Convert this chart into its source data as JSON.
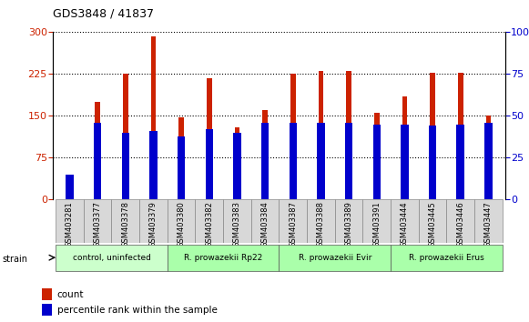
{
  "title": "GDS3848 / 41837",
  "samples": [
    "GSM403281",
    "GSM403377",
    "GSM403378",
    "GSM403379",
    "GSM403380",
    "GSM403382",
    "GSM403383",
    "GSM403384",
    "GSM403387",
    "GSM403388",
    "GSM403389",
    "GSM403391",
    "GSM403444",
    "GSM403445",
    "GSM403446",
    "GSM403447"
  ],
  "count_values": [
    5,
    175,
    225,
    293,
    148,
    218,
    130,
    160,
    225,
    230,
    230,
    155,
    185,
    228,
    228,
    150
  ],
  "percentile_values": [
    15,
    46,
    40,
    41,
    38,
    42,
    40,
    46,
    46,
    46,
    46,
    45,
    45,
    44,
    45,
    46
  ],
  "groups": [
    {
      "label": "control, uninfected",
      "start": 0,
      "end": 4,
      "color": "#ccffcc"
    },
    {
      "label": "R. prowazekii Rp22",
      "start": 4,
      "end": 8,
      "color": "#aaffaa"
    },
    {
      "label": "R. prowazekii Evir",
      "start": 8,
      "end": 12,
      "color": "#aaffaa"
    },
    {
      "label": "R. prowazekii Erus",
      "start": 12,
      "end": 16,
      "color": "#aaffaa"
    }
  ],
  "left_yticks": [
    0,
    75,
    150,
    225,
    300
  ],
  "right_yticks": [
    0,
    25,
    50,
    75,
    100
  ],
  "bar_color": "#cc2200",
  "percentile_color": "#0000cc",
  "background_color": "#ffffff",
  "bar_width": 0.18,
  "pct_bar_width": 0.28
}
